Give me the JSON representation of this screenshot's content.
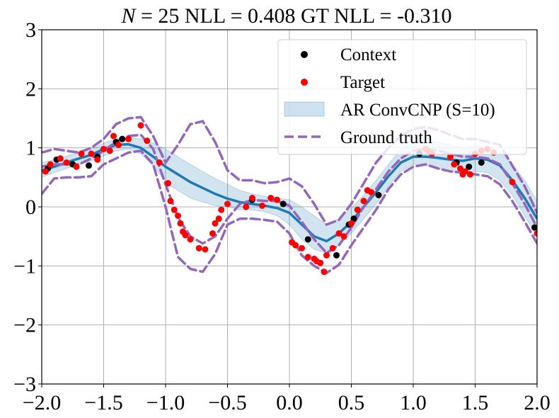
{
  "chart_data": {
    "type": "scatter",
    "title": {
      "prefix": "N",
      "text": " = 25  NLL = 0.408  GT NLL = -0.310"
    },
    "xlim": [
      -2.0,
      2.0
    ],
    "ylim": [
      -3,
      3
    ],
    "xticks": [
      "−2.0",
      "−1.5",
      "−1.0",
      "−0.5",
      "0.0",
      "0.5",
      "1.0",
      "1.5",
      "2.0"
    ],
    "xtick_values": [
      -2.0,
      -1.5,
      -1.0,
      -0.5,
      0.0,
      0.5,
      1.0,
      1.5,
      2.0
    ],
    "yticks": [
      "−3",
      "−2",
      "−1",
      "0",
      "1",
      "2",
      "3"
    ],
    "ytick_values": [
      -3,
      -2,
      -1,
      0,
      1,
      2,
      3
    ],
    "grid": true,
    "legend_position": "top-right",
    "legend": {
      "context": "Context",
      "target": "Target",
      "band": "AR ConvCNP (S=10)",
      "ground_truth": "Ground truth"
    },
    "colors": {
      "context": "#000000",
      "target": "#ff0000",
      "mean": "#1f77b4",
      "band": "#1f77b4",
      "ground_truth": "#9467bd",
      "grid": "#b0b0b0"
    },
    "series": [
      {
        "name": "Context",
        "points": [
          [
            -1.95,
            0.65
          ],
          [
            -1.88,
            0.8
          ],
          [
            -1.75,
            0.72
          ],
          [
            -1.62,
            0.7
          ],
          [
            -1.55,
            0.85
          ],
          [
            -1.4,
            1.1
          ],
          [
            -1.35,
            1.15
          ],
          [
            -0.3,
            0.12
          ],
          [
            -0.05,
            0.05
          ],
          [
            0.15,
            -0.55
          ],
          [
            0.38,
            -0.82
          ],
          [
            0.48,
            -0.3
          ],
          [
            0.52,
            -0.2
          ],
          [
            0.72,
            0.2
          ],
          [
            1.05,
            0.9
          ],
          [
            1.35,
            0.75
          ],
          [
            1.45,
            0.68
          ],
          [
            1.55,
            0.75
          ],
          [
            1.98,
            -0.35
          ]
        ]
      },
      {
        "name": "Target",
        "points": [
          [
            -1.97,
            0.6
          ],
          [
            -1.93,
            0.72
          ],
          [
            -1.85,
            0.82
          ],
          [
            -1.8,
            0.75
          ],
          [
            -1.72,
            0.68
          ],
          [
            -1.68,
            0.9
          ],
          [
            -1.6,
            0.9
          ],
          [
            -1.55,
            0.8
          ],
          [
            -1.5,
            0.98
          ],
          [
            -1.45,
            0.95
          ],
          [
            -1.42,
            1.2
          ],
          [
            -1.38,
            1.05
          ],
          [
            -1.3,
            1.15
          ],
          [
            -1.2,
            1.38
          ],
          [
            -1.15,
            1.12
          ],
          [
            -1.05,
            0.75
          ],
          [
            -0.98,
            0.4
          ],
          [
            -0.96,
            0.1
          ],
          [
            -0.93,
            -0.05
          ],
          [
            -0.9,
            -0.15
          ],
          [
            -0.88,
            -0.28
          ],
          [
            -0.86,
            -0.42
          ],
          [
            -0.84,
            -0.48
          ],
          [
            -0.8,
            -0.55
          ],
          [
            -0.73,
            -0.7
          ],
          [
            -0.68,
            -0.72
          ],
          [
            -0.62,
            -0.45
          ],
          [
            -0.6,
            -0.28
          ],
          [
            -0.57,
            -0.2
          ],
          [
            -0.55,
            -0.05
          ],
          [
            -0.5,
            0.05
          ],
          [
            -0.35,
            0.0
          ],
          [
            -0.3,
            0.15
          ],
          [
            -0.22,
            0.02
          ],
          [
            -0.15,
            0.15
          ],
          [
            -0.1,
            0.12
          ],
          [
            0.02,
            -0.6
          ],
          [
            0.05,
            -0.65
          ],
          [
            0.1,
            -0.7
          ],
          [
            0.15,
            -0.85
          ],
          [
            0.2,
            -0.88
          ],
          [
            0.22,
            -0.92
          ],
          [
            0.25,
            -0.95
          ],
          [
            0.28,
            -1.1
          ],
          [
            0.3,
            -0.82
          ],
          [
            0.35,
            -0.7
          ],
          [
            0.4,
            -0.45
          ],
          [
            0.44,
            -0.5
          ],
          [
            0.5,
            -0.28
          ],
          [
            0.55,
            -0.05
          ],
          [
            0.6,
            0.1
          ],
          [
            0.63,
            0.28
          ],
          [
            0.66,
            0.25
          ],
          [
            1.1,
            0.98
          ],
          [
            1.12,
            0.95
          ],
          [
            1.15,
            0.9
          ],
          [
            1.3,
            0.85
          ],
          [
            1.33,
            0.72
          ],
          [
            1.38,
            0.65
          ],
          [
            1.4,
            0.55
          ],
          [
            1.42,
            0.6
          ],
          [
            1.46,
            0.55
          ],
          [
            1.5,
            0.9
          ],
          [
            1.55,
            0.95
          ],
          [
            1.6,
            0.98
          ],
          [
            1.65,
            0.92
          ],
          [
            1.8,
            0.42
          ],
          [
            2.0,
            -0.45
          ]
        ]
      },
      {
        "name": "AR ConvCNP (S=10)",
        "x": [
          -2.0,
          -1.9,
          -1.8,
          -1.7,
          -1.6,
          -1.5,
          -1.4,
          -1.3,
          -1.2,
          -1.1,
          -1.0,
          -0.9,
          -0.8,
          -0.7,
          -0.6,
          -0.5,
          -0.4,
          -0.3,
          -0.2,
          -0.1,
          0.0,
          0.1,
          0.2,
          0.3,
          0.4,
          0.5,
          0.6,
          0.7,
          0.8,
          0.9,
          1.0,
          1.1,
          1.2,
          1.3,
          1.4,
          1.5,
          1.6,
          1.7,
          1.8,
          1.9,
          2.0
        ],
        "mean": [
          0.62,
          0.68,
          0.75,
          0.82,
          0.88,
          0.98,
          1.05,
          1.06,
          1.0,
          0.85,
          0.68,
          0.55,
          0.42,
          0.32,
          0.22,
          0.14,
          0.08,
          0.05,
          0.02,
          -0.02,
          -0.1,
          -0.3,
          -0.5,
          -0.58,
          -0.45,
          -0.25,
          0.0,
          0.25,
          0.52,
          0.75,
          0.85,
          0.85,
          0.83,
          0.8,
          0.78,
          0.82,
          0.8,
          0.7,
          0.45,
          0.15,
          -0.2
        ],
        "lower": [
          0.5,
          0.58,
          0.65,
          0.72,
          0.78,
          0.86,
          0.95,
          0.98,
          0.9,
          0.7,
          0.42,
          0.28,
          0.15,
          0.08,
          0.02,
          0.0,
          -0.05,
          -0.05,
          -0.08,
          -0.15,
          -0.3,
          -0.55,
          -0.72,
          -0.78,
          -0.65,
          -0.45,
          -0.2,
          0.05,
          0.35,
          0.6,
          0.72,
          0.7,
          0.65,
          0.6,
          0.58,
          0.6,
          0.58,
          0.45,
          0.2,
          -0.15,
          -0.5
        ],
        "upper": [
          0.75,
          0.8,
          0.86,
          0.92,
          0.98,
          1.08,
          1.15,
          1.18,
          1.15,
          1.08,
          0.98,
          0.85,
          0.72,
          0.6,
          0.48,
          0.38,
          0.28,
          0.22,
          0.18,
          0.15,
          0.12,
          0.0,
          -0.15,
          -0.3,
          -0.2,
          -0.02,
          0.2,
          0.45,
          0.72,
          0.98,
          1.1,
          1.12,
          1.1,
          1.05,
          1.0,
          1.05,
          1.02,
          0.95,
          0.72,
          0.45,
          0.1
        ]
      },
      {
        "name": "Ground truth",
        "x": [
          -2.0,
          -1.9,
          -1.8,
          -1.7,
          -1.6,
          -1.5,
          -1.4,
          -1.3,
          -1.2,
          -1.1,
          -1.0,
          -0.9,
          -0.8,
          -0.7,
          -0.6,
          -0.5,
          -0.4,
          -0.3,
          -0.2,
          -0.1,
          0.0,
          0.1,
          0.2,
          0.3,
          0.4,
          0.5,
          0.6,
          0.7,
          0.8,
          0.9,
          1.0,
          1.1,
          1.2,
          1.3,
          1.4,
          1.5,
          1.6,
          1.7,
          1.8,
          1.9,
          2.0
        ],
        "upper": [
          0.92,
          0.98,
          0.95,
          0.92,
          1.0,
          1.15,
          1.4,
          1.5,
          1.52,
          1.2,
          0.75,
          1.05,
          1.4,
          1.45,
          1.1,
          0.62,
          0.45,
          0.45,
          0.4,
          0.42,
          0.48,
          0.35,
          0.05,
          -0.3,
          -0.22,
          0.05,
          0.4,
          0.75,
          1.0,
          1.2,
          1.32,
          1.35,
          1.3,
          1.22,
          1.15,
          1.15,
          1.1,
          1.05,
          0.7,
          0.35,
          -0.1
        ],
        "mean": [
          0.68,
          0.72,
          0.72,
          0.72,
          0.82,
          0.95,
          1.1,
          1.2,
          1.22,
          0.98,
          0.38,
          -0.18,
          -0.5,
          -0.62,
          -0.5,
          -0.2,
          0.05,
          0.12,
          0.1,
          0.1,
          0.02,
          -0.25,
          -0.55,
          -0.78,
          -0.65,
          -0.35,
          0.0,
          0.3,
          0.6,
          0.82,
          0.95,
          0.98,
          0.95,
          0.9,
          0.85,
          0.85,
          0.82,
          0.72,
          0.4,
          0.05,
          -0.35
        ],
        "lower": [
          0.22,
          0.48,
          0.5,
          0.5,
          0.52,
          0.72,
          0.82,
          0.92,
          0.95,
          0.72,
          0.0,
          -0.85,
          -1.05,
          -1.1,
          -0.8,
          -0.3,
          -0.2,
          -0.2,
          -0.22,
          -0.25,
          -0.45,
          -0.82,
          -1.0,
          -1.12,
          -0.98,
          -0.65,
          -0.35,
          -0.05,
          0.3,
          0.55,
          0.68,
          0.72,
          0.65,
          0.6,
          0.58,
          0.55,
          0.52,
          0.38,
          0.1,
          -0.25,
          -0.62
        ]
      }
    ]
  }
}
